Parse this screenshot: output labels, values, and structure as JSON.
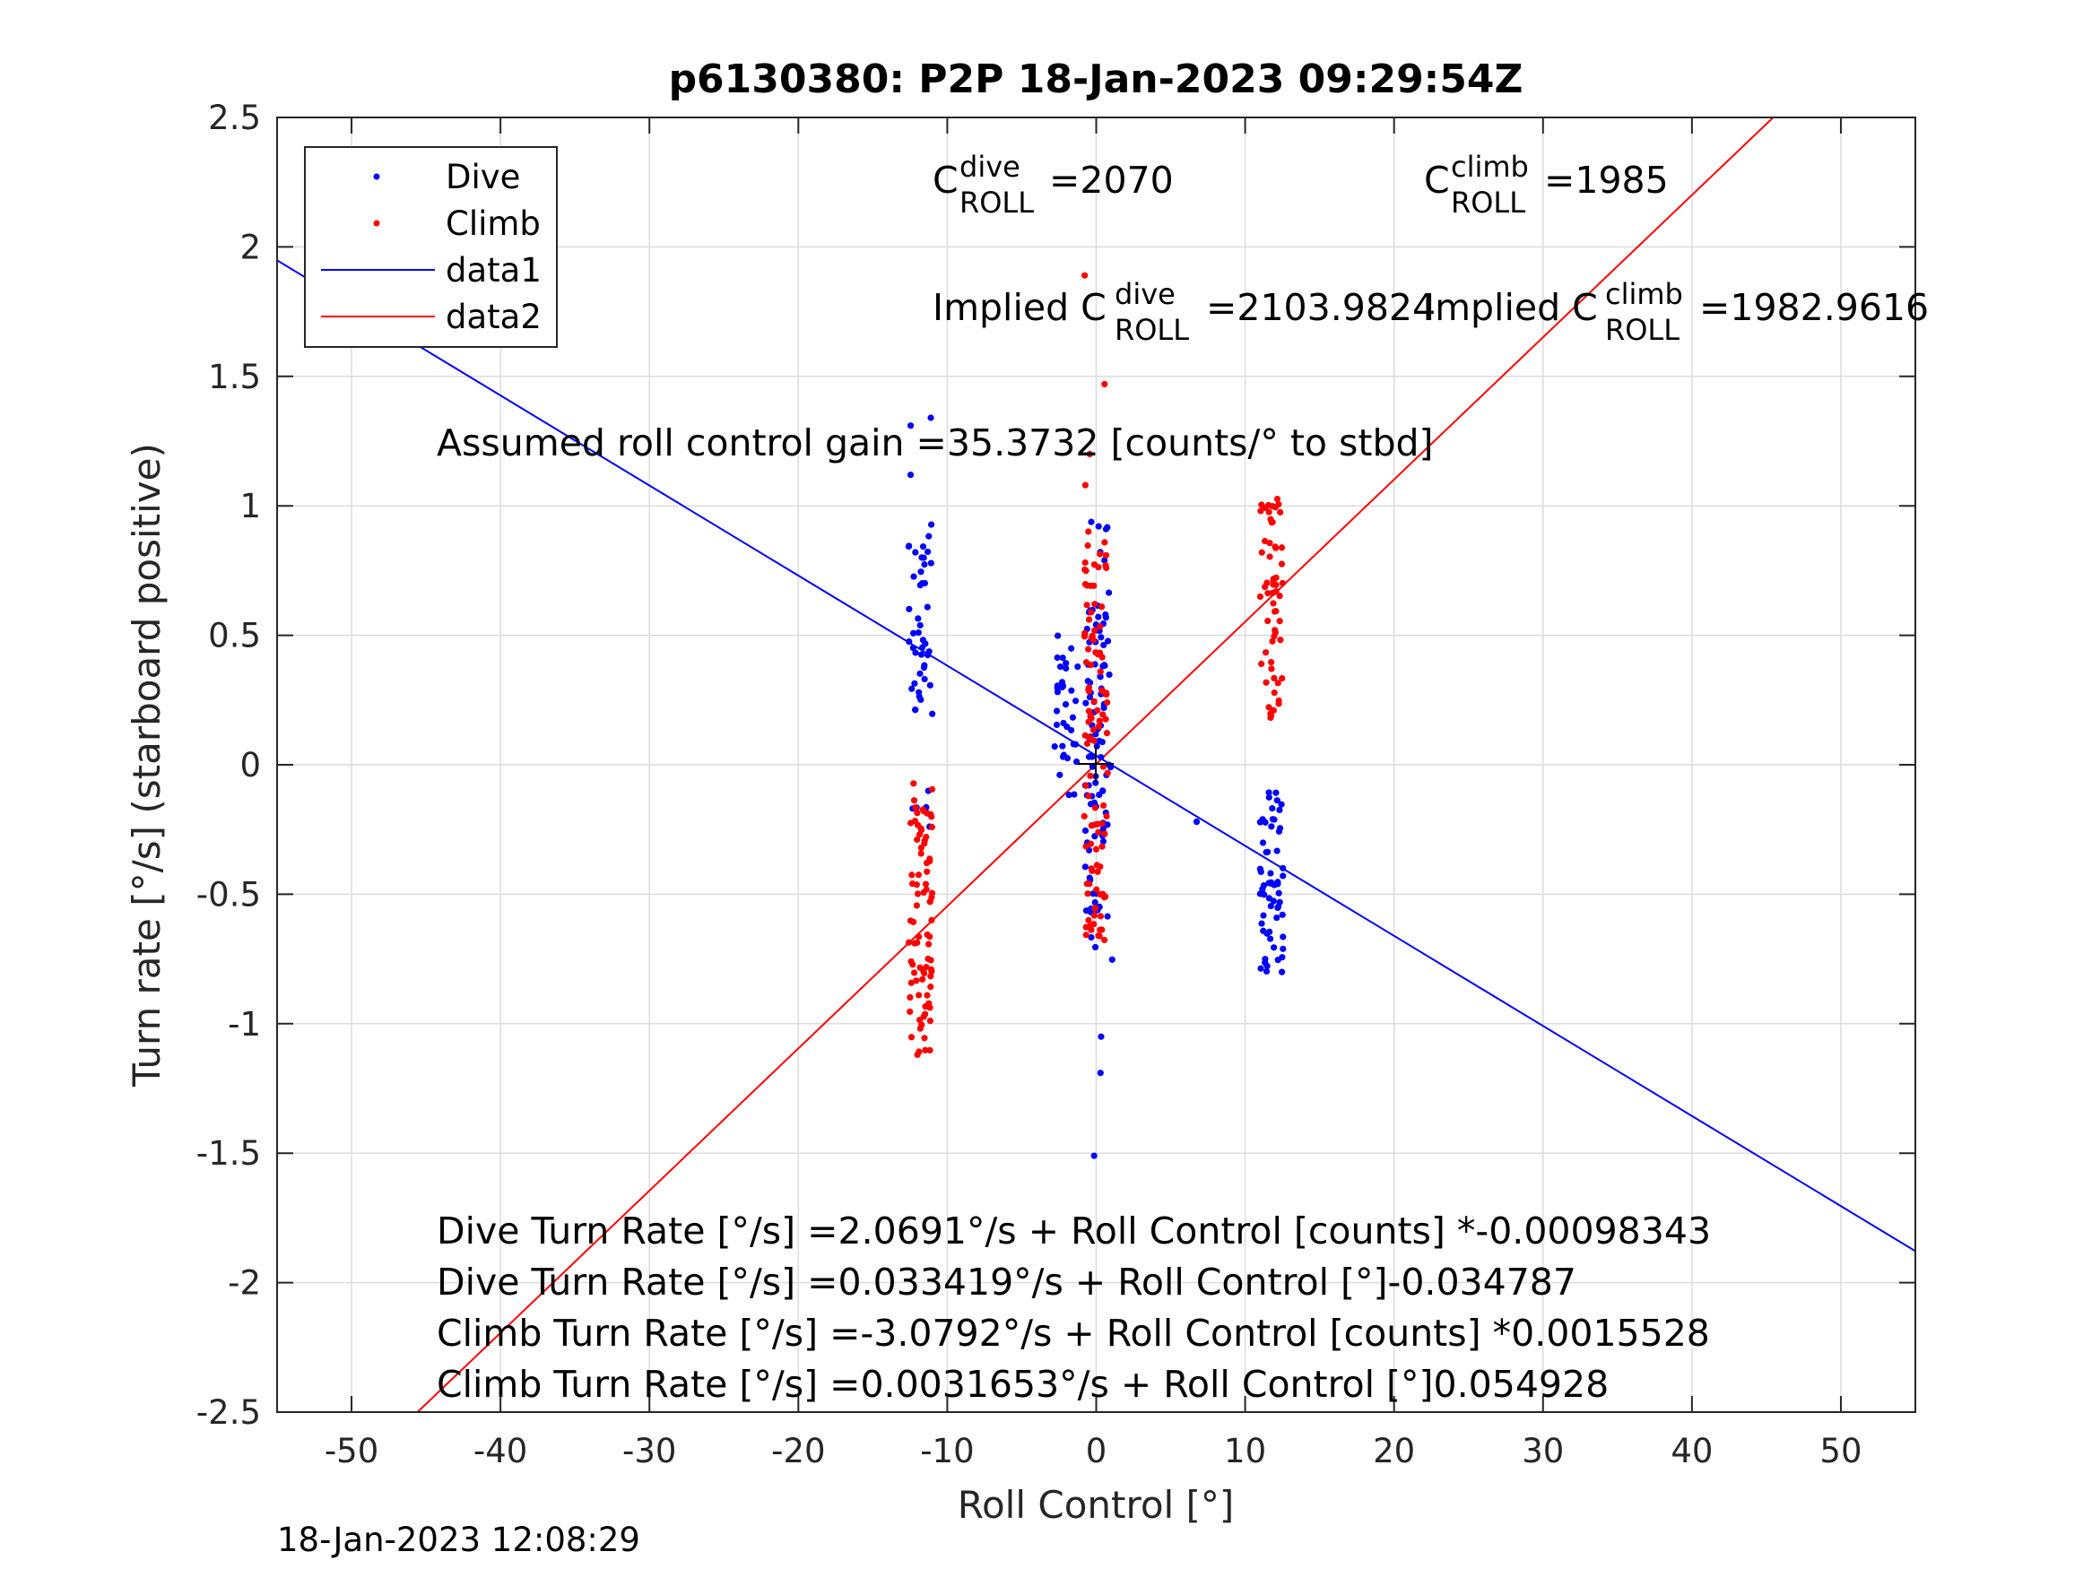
{
  "chart_data": {
    "type": "scatter",
    "title": "p6130380: P2P 18-Jan-2023 09:29:54Z",
    "xlabel": "Roll Control [°]",
    "ylabel": "Turn rate [°/s] (starboard positive)",
    "xlim": [
      -55,
      55
    ],
    "ylim": [
      -2.5,
      2.5
    ],
    "xticks": [
      "-50",
      "-40",
      "-30",
      "-20",
      "-10",
      "0",
      "10",
      "20",
      "30",
      "40",
      "50"
    ],
    "yticks": [
      "-2.5",
      "-2",
      "-1.5",
      "-1",
      "-0.5",
      "0",
      "0.5",
      "1",
      "1.5",
      "2",
      "2.5"
    ],
    "grid": true,
    "legend_position": "top-left",
    "legend": {
      "dive": "Dive",
      "climb": "Climb",
      "data1": "data1",
      "data2": "data2"
    },
    "series": [
      {
        "name": "Dive",
        "kind": "points",
        "color": "#0000ff",
        "clusters": [
          {
            "x": -11.8,
            "y_range": [
              -0.3,
              -0.1
            ],
            "count": 6
          },
          {
            "x": -11.8,
            "y_range": [
              0.12,
              0.95
            ],
            "count": 45
          },
          {
            "x": -11.8,
            "y_values": [
              1.12,
              1.34,
              1.31
            ]
          },
          {
            "x": -2.0,
            "y_range": [
              -0.12,
              0.5
            ],
            "count": 35
          },
          {
            "x": 0.0,
            "y_range": [
              -0.6,
              0.6
            ],
            "count": 70
          },
          {
            "x": 0.3,
            "y_range": [
              -0.76,
              0.95
            ],
            "count": 30
          },
          {
            "x": 0.0,
            "y_values": [
              -1.05,
              -1.19,
              -1.51
            ]
          },
          {
            "x": 11.8,
            "y_range": [
              -0.81,
              -0.08
            ],
            "count": 60
          },
          {
            "x": 6.2,
            "y_values": [
              -0.22
            ]
          },
          {
            "x": 1.2,
            "y_values": [
              -0.1
            ]
          }
        ]
      },
      {
        "name": "Climb",
        "kind": "points",
        "color": "#ff0000",
        "clusters": [
          {
            "x": -11.8,
            "y_range": [
              -1.13,
              -0.07
            ],
            "count": 85
          },
          {
            "x": 0.0,
            "y_range": [
              -0.68,
              0.95
            ],
            "count": 110
          },
          {
            "x": 0.0,
            "y_values": [
              1.2,
              1.47,
              1.89,
              1.08
            ]
          },
          {
            "x": 11.8,
            "y_range": [
              0.15,
              1.03
            ],
            "count": 60
          }
        ]
      },
      {
        "name": "data1",
        "kind": "line",
        "color": "#0000ff",
        "x": [
          -55,
          55
        ],
        "y": [
          1.9482,
          -1.8782
        ]
      },
      {
        "name": "data2",
        "kind": "line",
        "color": "#ff0000",
        "x": [
          -55,
          55
        ],
        "y": [
          -3.0179,
          3.0242
        ]
      }
    ],
    "annotations": {
      "c_dive": "=2070",
      "c_climb": "=1985",
      "implied_c_dive": "=2103.9824",
      "implied_c_climb": "=1982.9616",
      "implied_prefix": "Implied C",
      "c_base": "C",
      "sup_dive": "dive",
      "sup_climb": "climb",
      "sub_roll": "ROLL",
      "gain": "Assumed roll control gain =35.3732 [counts/° to stbd]",
      "fit_lines": [
        "Dive Turn Rate [°/s] =2.0691°/s + Roll Control [counts] *-0.00098343",
        "Dive Turn Rate [°/s] =0.033419°/s + Roll Control [°]-0.034787",
        "Climb Turn Rate [°/s] =-3.0792°/s + Roll Control [counts] *0.0015528",
        "Climb Turn Rate [°/s] =0.0031653°/s + Roll Control [°]0.054928"
      ]
    }
  },
  "footer": {
    "timestamp": "18-Jan-2023 12:08:29"
  }
}
